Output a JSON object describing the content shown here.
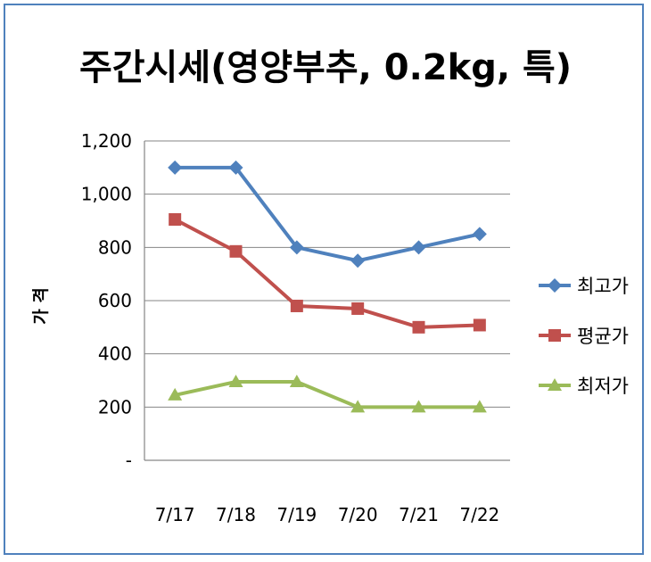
{
  "chart_data": {
    "type": "line",
    "title": "주간시세(영양부추, 0.2kg, 특)",
    "xlabel": "",
    "ylabel": "가 격",
    "categories": [
      "7/17",
      "7/18",
      "7/19",
      "7/20",
      "7/21",
      "7/22"
    ],
    "y_ticks": [
      "-",
      "200",
      "400",
      "600",
      "800",
      "1,000",
      "1,200"
    ],
    "ylim": [
      0,
      1200
    ],
    "grid": true,
    "legend_position": "right",
    "series": [
      {
        "name": "최고가",
        "color": "#4f81bd",
        "marker": "diamond",
        "values": [
          1100,
          1100,
          800,
          750,
          800,
          850
        ]
      },
      {
        "name": "평균가",
        "color": "#c0504d",
        "marker": "square",
        "values": [
          905,
          785,
          580,
          570,
          500,
          508
        ]
      },
      {
        "name": "최저가",
        "color": "#9bbb59",
        "marker": "triangle",
        "values": [
          245,
          295,
          295,
          200,
          200,
          200
        ]
      }
    ]
  }
}
